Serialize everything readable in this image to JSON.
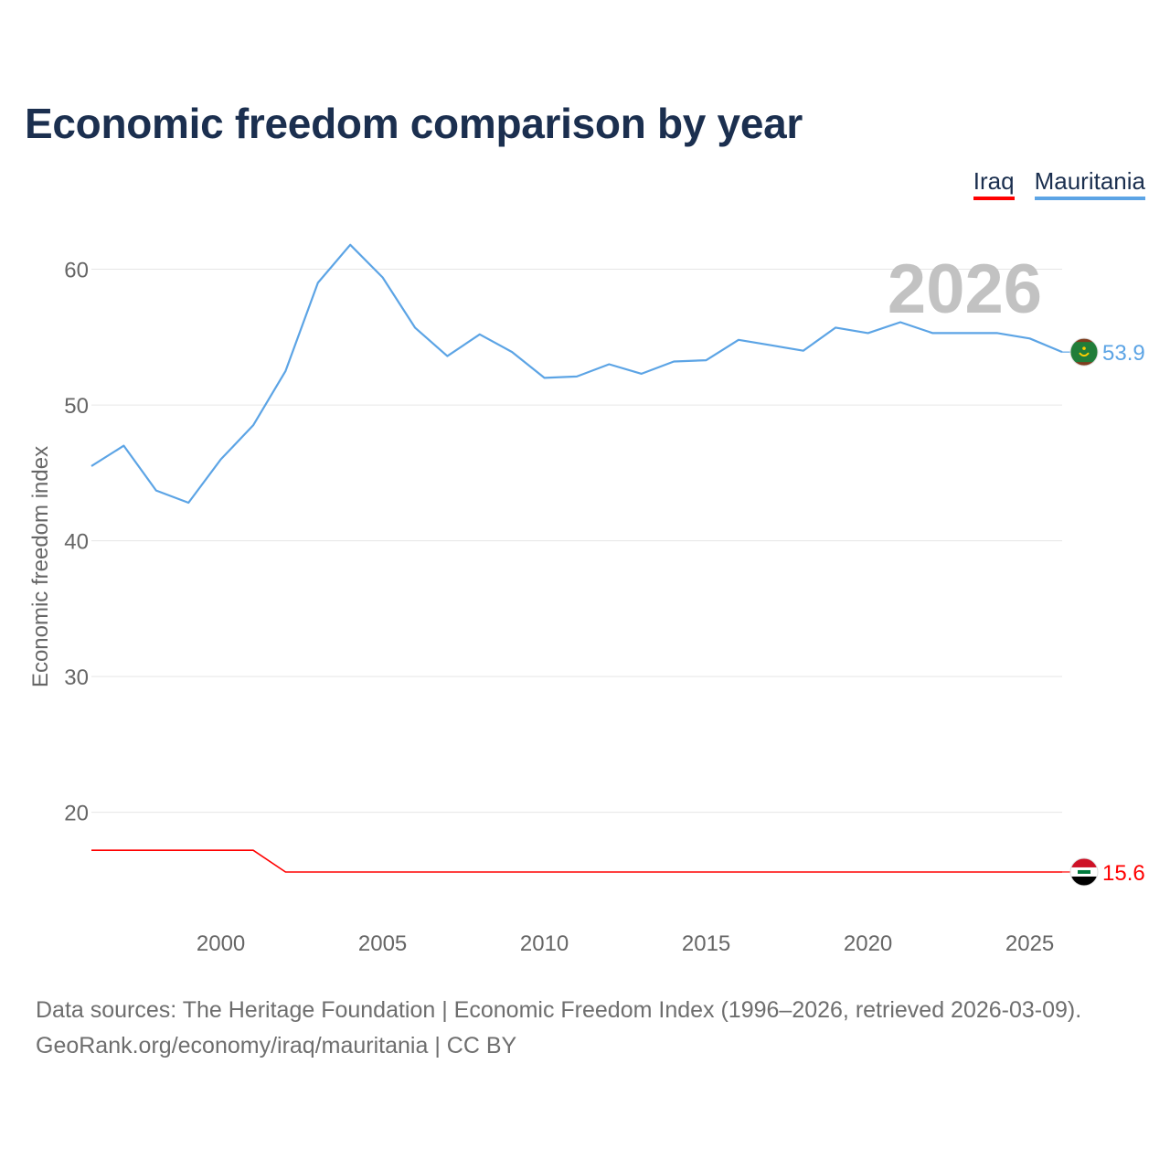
{
  "title": "Economic freedom comparison by year",
  "legend": {
    "iraq": "Iraq",
    "mauritania": "Mauritania"
  },
  "colors": {
    "iraq": "#ff0000",
    "mauritania": "#5ca4e5",
    "title": "#1b2f4f",
    "axis_text": "#666666",
    "grid": "#e6e6e6",
    "year_watermark": "#c2c2c2"
  },
  "chart_data": {
    "type": "line",
    "title": "Economic freedom comparison by year",
    "xlabel": "",
    "ylabel": "Economic freedom index",
    "xlim": [
      1996,
      2026
    ],
    "ylim": [
      12.5,
      63
    ],
    "x_ticks": [
      2000,
      2005,
      2010,
      2015,
      2020,
      2025
    ],
    "y_ticks": [
      20,
      30,
      40,
      50,
      60
    ],
    "grid": true,
    "year_label": "2026",
    "x": [
      1996,
      1997,
      1998,
      1999,
      2000,
      2001,
      2002,
      2003,
      2004,
      2005,
      2006,
      2007,
      2008,
      2009,
      2010,
      2011,
      2012,
      2013,
      2014,
      2015,
      2016,
      2017,
      2018,
      2019,
      2020,
      2021,
      2022,
      2023,
      2024,
      2025,
      2026
    ],
    "series": [
      {
        "name": "Mauritania",
        "key": "mauritania",
        "values": [
          45.5,
          47.0,
          43.7,
          42.8,
          46.0,
          48.5,
          52.5,
          59.0,
          61.8,
          59.4,
          55.7,
          53.6,
          55.2,
          53.9,
          52.0,
          52.1,
          53.0,
          52.3,
          53.2,
          53.3,
          54.8,
          54.4,
          54.0,
          55.7,
          55.3,
          56.1,
          55.3,
          55.3,
          55.3,
          54.9,
          53.9
        ],
        "end_label": "53.9",
        "flag": "mauritania-flag"
      },
      {
        "name": "Iraq",
        "key": "iraq",
        "values": [
          17.2,
          17.2,
          17.2,
          17.2,
          17.2,
          17.2,
          15.6,
          15.6,
          15.6,
          15.6,
          15.6,
          15.6,
          15.6,
          15.6,
          15.6,
          15.6,
          15.6,
          15.6,
          15.6,
          15.6,
          15.6,
          15.6,
          15.6,
          15.6,
          15.6,
          15.6,
          15.6,
          15.6,
          15.6,
          15.6,
          15.6
        ],
        "end_label": "15.6",
        "flag": "iraq-flag"
      }
    ]
  },
  "footer": {
    "line1": "Data sources: The Heritage Foundation | Economic Freedom Index (1996–2026, retrieved 2026-03-09).",
    "line2": "GeoRank.org/economy/iraq/mauritania | CC BY"
  }
}
